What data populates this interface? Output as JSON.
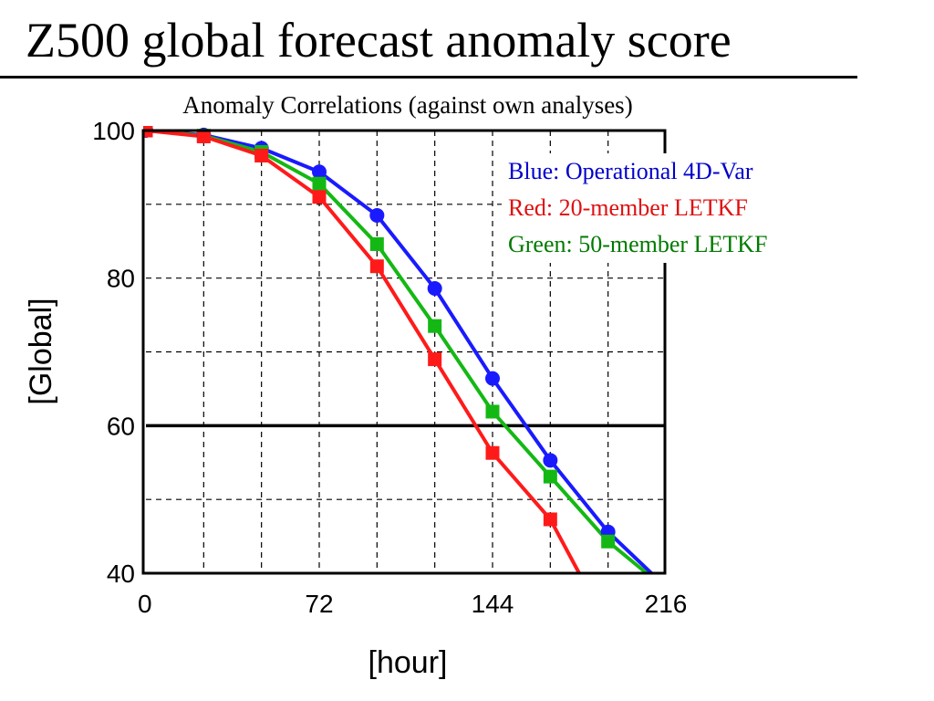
{
  "slide": {
    "title": "Z500 global forecast anomaly score"
  },
  "colors": {
    "blue": "#1a1aff",
    "red": "#ff1a1a",
    "green": "#14b814",
    "blue_text": "#0000cc",
    "red_text": "#e01010",
    "green_text": "#007a00"
  },
  "chart_data": {
    "type": "line",
    "title": "Anomaly Correlations (against own analyses)",
    "xlabel": "[hour]",
    "ylabel": "[Global]",
    "xlim": [
      0,
      216
    ],
    "ylim": [
      40,
      100
    ],
    "xticks": [
      0,
      72,
      144,
      216
    ],
    "xtick_labels": [
      "0",
      "72",
      "144",
      "216"
    ],
    "yticks": [
      40,
      60,
      80,
      100
    ],
    "ytick_labels": [
      "40",
      "60",
      "80",
      "100"
    ],
    "grid": true,
    "grid_style": "dashed",
    "grid_x": [
      0,
      24,
      48,
      72,
      96,
      120,
      144,
      168,
      192,
      216
    ],
    "grid_y": [
      40,
      50,
      60,
      70,
      80,
      90,
      100
    ],
    "reference_line": 60,
    "legend": {
      "placement": "top-right",
      "entries": [
        "Blue: Operational 4D-Var",
        "Red: 20-member LETKF",
        "Green: 50-member LETKF"
      ]
    },
    "x": [
      0,
      24,
      48,
      72,
      96,
      120,
      144,
      168,
      192
    ],
    "series": [
      {
        "color": "#1a1aff",
        "marker": "circle",
        "values": [
          100,
          99.4,
          97.6,
          94.4,
          88.5,
          78.6,
          66.4,
          55.3,
          45.6
        ],
        "line_end": [
          210,
          40
        ]
      },
      {
        "color": "#ff1a1a",
        "marker": "square",
        "values": [
          100,
          99.2,
          96.6,
          91.0,
          81.6,
          69.0,
          56.3,
          47.3,
          null
        ],
        "line_end": [
          180,
          40
        ]
      },
      {
        "color": "#14b814",
        "marker": "square",
        "values": [
          100,
          99.3,
          97.1,
          92.8,
          84.6,
          73.5,
          61.9,
          53.1,
          44.3
        ],
        "line_end": [
          208,
          40
        ]
      }
    ]
  }
}
